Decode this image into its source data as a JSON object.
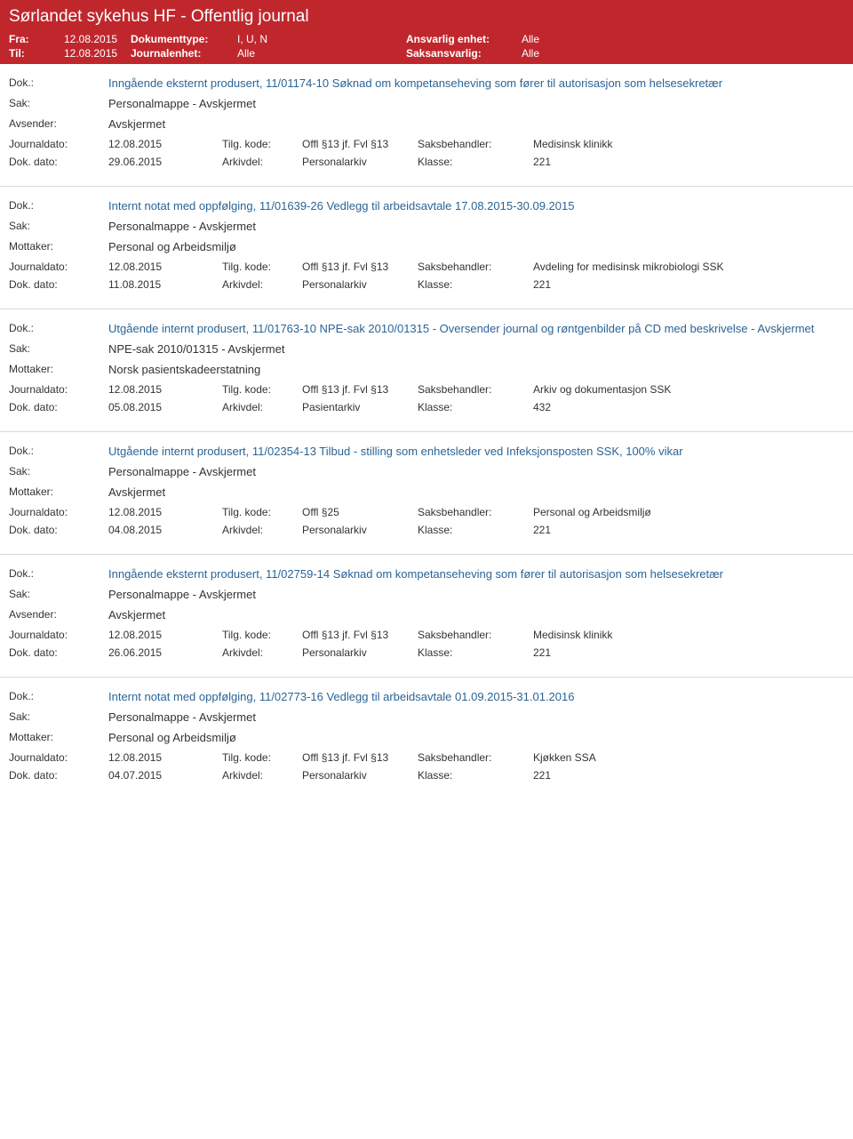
{
  "header": {
    "title": "Sørlandet sykehus HF - Offentlig journal",
    "fra_label": "Fra:",
    "fra_value": "12.08.2015",
    "til_label": "Til:",
    "til_value": "12.08.2015",
    "doktype_label": "Dokumenttype:",
    "doktype_value": "I, U, N",
    "journalenhet_label": "Journalenhet:",
    "journalenhet_value": "Alle",
    "ansvarlig_label": "Ansvarlig enhet:",
    "ansvarlig_value": "Alle",
    "saksansvarlig_label": "Saksansvarlig:",
    "saksansvarlig_value": "Alle"
  },
  "labels": {
    "dok": "Dok.:",
    "sak": "Sak:",
    "avsender": "Avsender:",
    "mottaker": "Mottaker:",
    "journaldato": "Journaldato:",
    "dokdato": "Dok. dato:",
    "tilgkode": "Tilg. kode:",
    "arkivdel": "Arkivdel:",
    "saksbehandler": "Saksbehandler:",
    "klasse": "Klasse:"
  },
  "entries": [
    {
      "dok": "Inngående eksternt produsert, 11/01174-10 Søknad om kompetanseheving som fører til autorisasjon som helsesekretær",
      "sak": "Personalmappe - Avskjermet",
      "party_label": "Avsender:",
      "party_value": "Avskjermet",
      "journaldato": "12.08.2015",
      "tilgkode": "Offl §13 jf. Fvl §13",
      "saksbehandler": "Medisinsk klinikk",
      "dokdato": "29.06.2015",
      "arkivdel": "Personalarkiv",
      "klasse": "221"
    },
    {
      "dok": "Internt notat med oppfølging, 11/01639-26 Vedlegg til arbeidsavtale 17.08.2015-30.09.2015",
      "sak": "Personalmappe - Avskjermet",
      "party_label": "Mottaker:",
      "party_value": "Personal og Arbeidsmiljø",
      "journaldato": "12.08.2015",
      "tilgkode": "Offl §13 jf. Fvl §13",
      "saksbehandler": "Avdeling for medisinsk mikrobiologi SSK",
      "dokdato": "11.08.2015",
      "arkivdel": "Personalarkiv",
      "klasse": "221"
    },
    {
      "dok": "Utgående internt produsert, 11/01763-10 NPE-sak 2010/01315 - Oversender journal og røntgenbilder på CD med beskrivelse - Avskjermet",
      "sak": "NPE-sak 2010/01315 - Avskjermet",
      "party_label": "Mottaker:",
      "party_value": "Norsk pasientskadeerstatning",
      "journaldato": "12.08.2015",
      "tilgkode": "Offl §13 jf. Fvl §13",
      "saksbehandler": "Arkiv og dokumentasjon SSK",
      "dokdato": "05.08.2015",
      "arkivdel": "Pasientarkiv",
      "klasse": "432"
    },
    {
      "dok": "Utgående internt produsert, 11/02354-13 Tilbud - stilling som enhetsleder ved Infeksjonsposten SSK, 100% vikar",
      "sak": "Personalmappe - Avskjermet",
      "party_label": "Mottaker:",
      "party_value": "Avskjermet",
      "journaldato": "12.08.2015",
      "tilgkode": "Offl §25",
      "saksbehandler": "Personal og Arbeidsmiljø",
      "dokdato": "04.08.2015",
      "arkivdel": "Personalarkiv",
      "klasse": "221"
    },
    {
      "dok": "Inngående eksternt produsert, 11/02759-14 Søknad om kompetanseheving som fører til autorisasjon som helsesekretær",
      "sak": "Personalmappe - Avskjermet",
      "party_label": "Avsender:",
      "party_value": "Avskjermet",
      "journaldato": "12.08.2015",
      "tilgkode": "Offl §13 jf. Fvl §13",
      "saksbehandler": "Medisinsk klinikk",
      "dokdato": "26.06.2015",
      "arkivdel": "Personalarkiv",
      "klasse": "221"
    },
    {
      "dok": "Internt notat med oppfølging, 11/02773-16 Vedlegg til arbeidsavtale 01.09.2015-31.01.2016",
      "sak": "Personalmappe - Avskjermet",
      "party_label": "Mottaker:",
      "party_value": "Personal og Arbeidsmiljø",
      "journaldato": "12.08.2015",
      "tilgkode": "Offl §13 jf. Fvl §13",
      "saksbehandler": "Kjøkken SSA",
      "dokdato": "04.07.2015",
      "arkivdel": "Personalarkiv",
      "klasse": "221"
    }
  ]
}
